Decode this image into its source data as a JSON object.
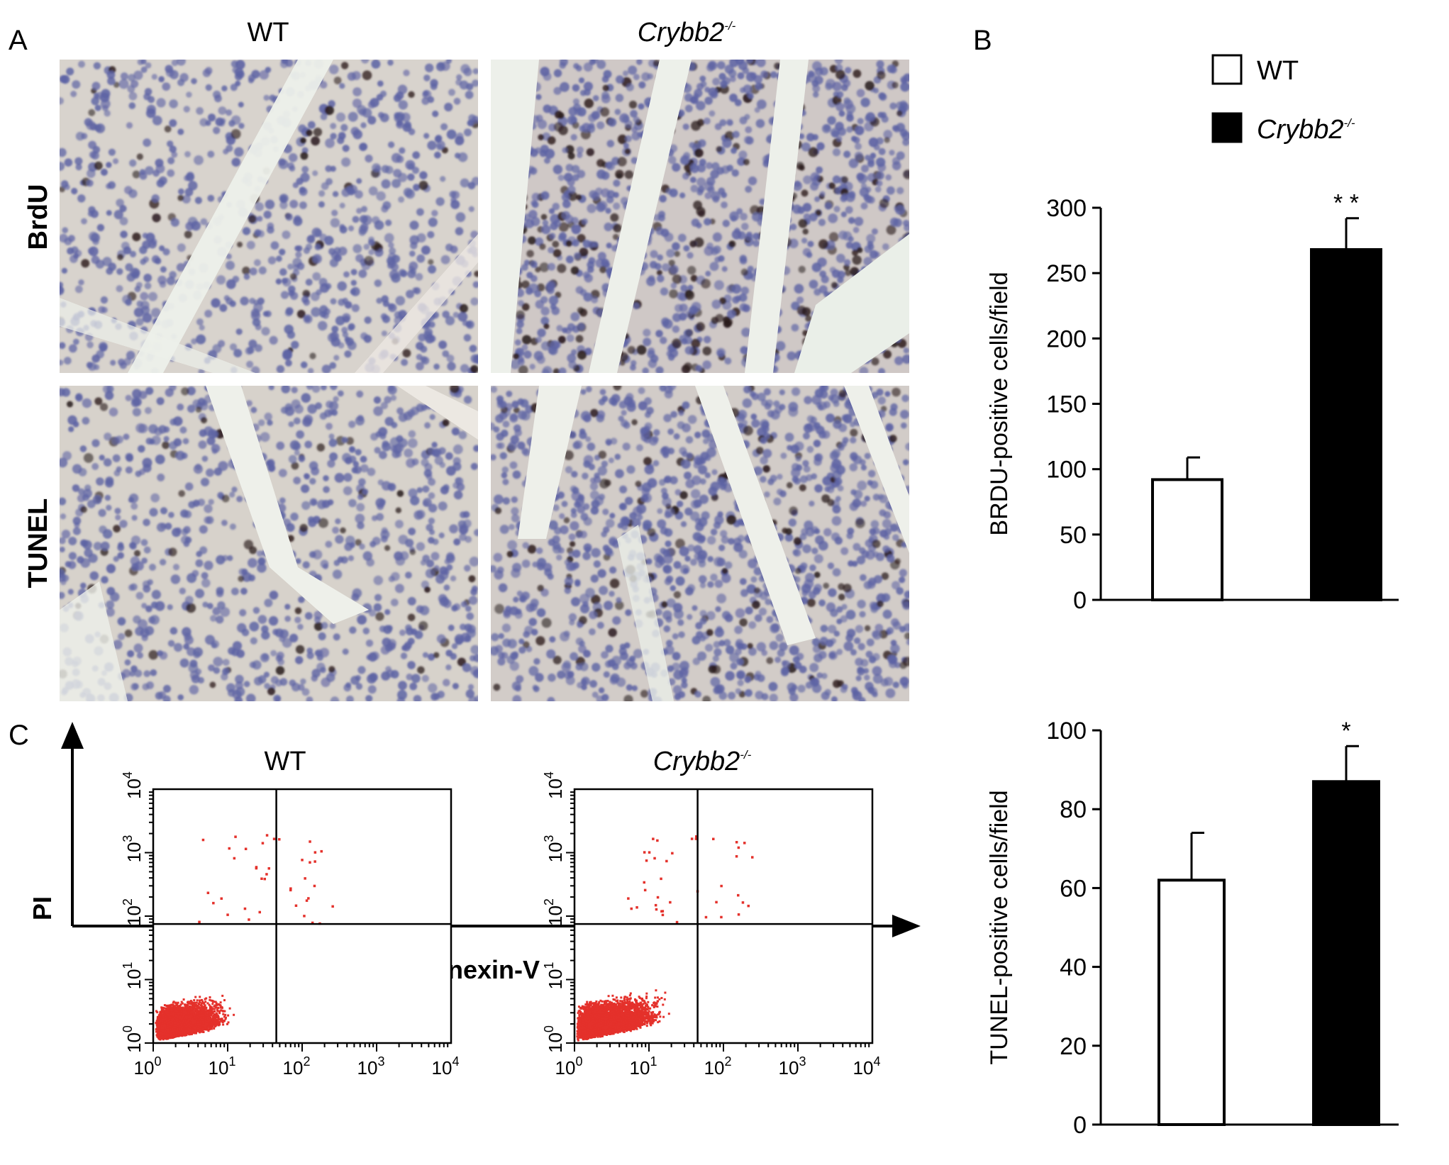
{
  "panel_a": {
    "label": "A",
    "col_wt": "WT",
    "col_ko": "Crybb2",
    "col_ko_sup": "-/-",
    "row_brdu": "BrdU",
    "row_tunel": "TUNEL"
  },
  "panel_b": {
    "label": "B",
    "legend_wt": "WT",
    "legend_ko": "Crybb2",
    "legend_ko_sup": "-/-"
  },
  "panel_c": {
    "label": "C",
    "title_wt": "WT",
    "title_ko": "Crybb2",
    "title_ko_sup": "-/-",
    "y_axis": "PI",
    "x_axis": "Annexin-V",
    "tick_base": "10",
    "tick_exps": [
      "0",
      "1",
      "2",
      "3",
      "4"
    ]
  },
  "colors": {
    "wt_fill": "#ffffff",
    "ko_fill": "#000000",
    "dot": "#e4312b",
    "tissue_bg": "#d9d4cf",
    "nucleus_blue": "#5d63a4",
    "nucleus_dark": "#2a1b1c"
  },
  "chart_data": [
    {
      "type": "bar",
      "categories": [
        "WT",
        "Crybb2-/-"
      ],
      "values": [
        92,
        268
      ],
      "errors": [
        17,
        24
      ],
      "significance": [
        "",
        "* *"
      ],
      "ylabel": "BRDU-positive cells/field",
      "ylim": [
        0,
        300
      ],
      "yticks": [
        "0",
        "50",
        "100",
        "150",
        "200",
        "250",
        "300"
      ]
    },
    {
      "type": "bar",
      "categories": [
        "WT",
        "Crybb2-/-"
      ],
      "values": [
        62,
        87
      ],
      "errors": [
        12,
        9
      ],
      "significance": [
        "",
        "*"
      ],
      "ylabel": "TUNEL-positive cells/field",
      "ylim": [
        0,
        100
      ],
      "yticks": [
        "0",
        "20",
        "40",
        "60",
        "80",
        "100"
      ]
    },
    {
      "type": "scatter",
      "title": "WT",
      "xscale": "log",
      "yscale": "log",
      "xlim": [
        1,
        10000
      ],
      "ylim": [
        1,
        10000
      ],
      "gate": {
        "x": 45,
        "y": 75
      },
      "population": "dense cluster near origin; sparse events above PI 10^2"
    },
    {
      "type": "scatter",
      "title": "Crybb2-/-",
      "xscale": "log",
      "yscale": "log",
      "xlim": [
        1,
        10000
      ],
      "ylim": [
        1,
        10000
      ],
      "gate": {
        "x": 45,
        "y": 75
      },
      "population": "dense cluster extending further into annexin-positive quadrant"
    }
  ]
}
